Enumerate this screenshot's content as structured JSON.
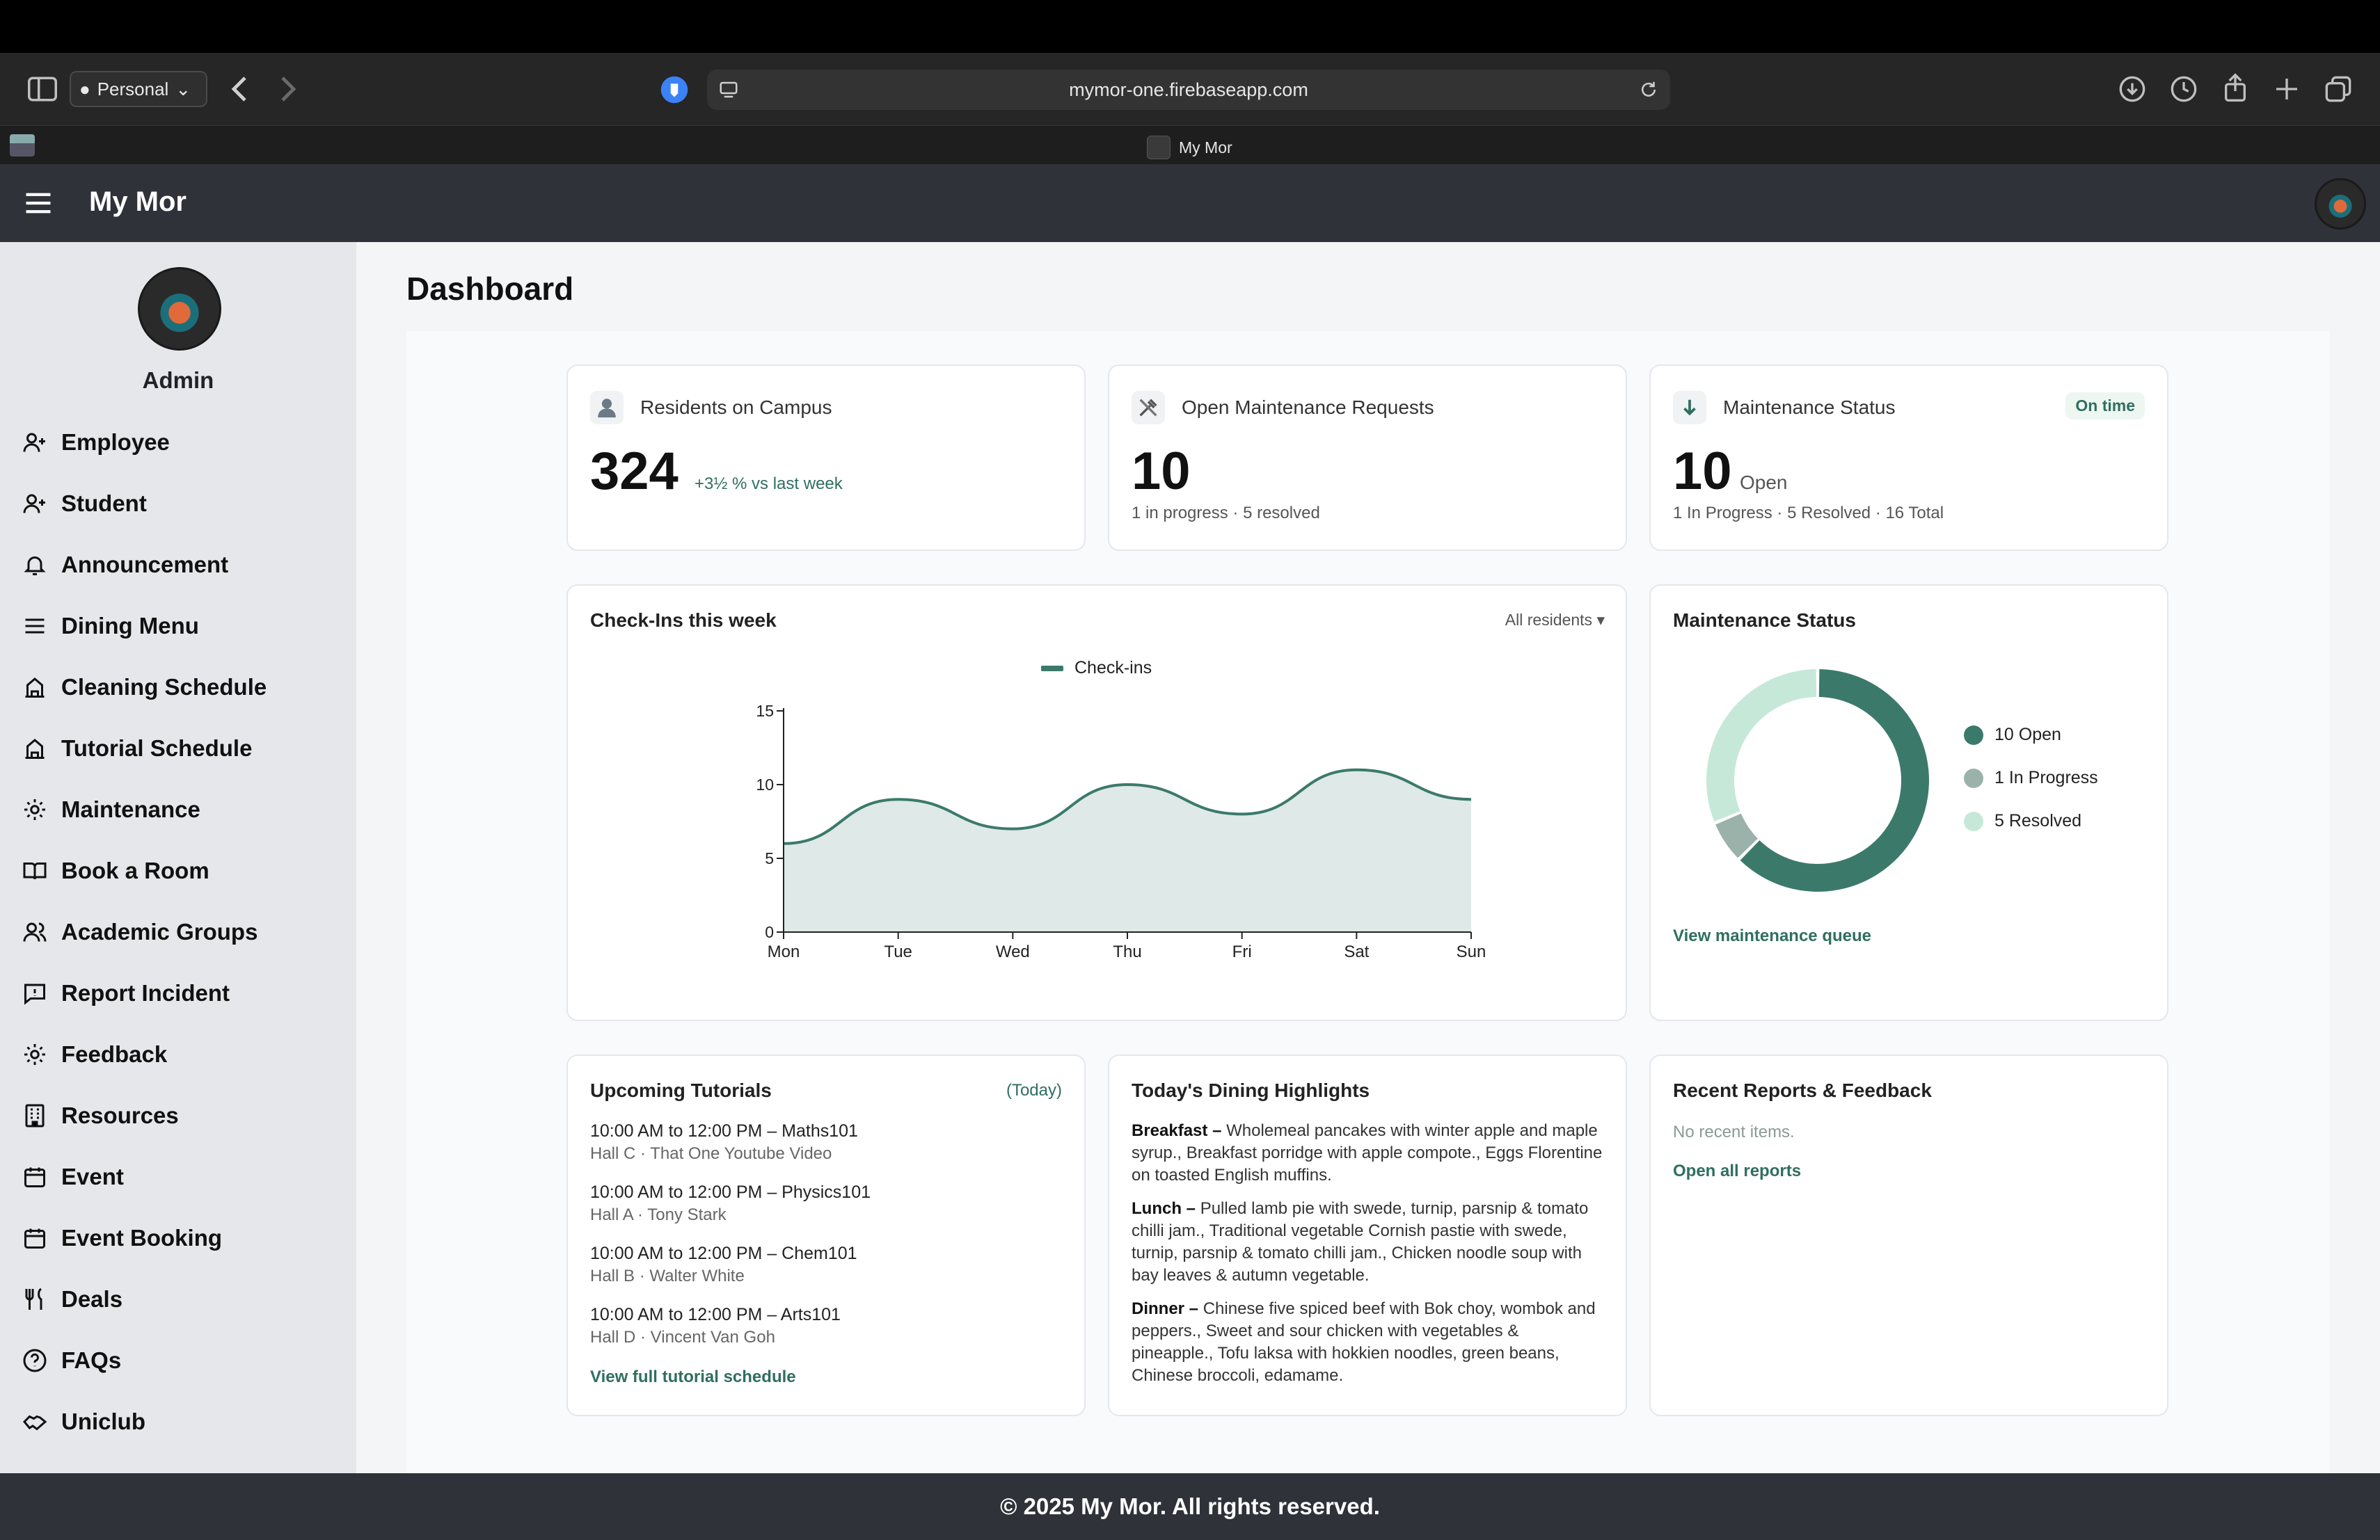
{
  "browser": {
    "profile": "Personal",
    "url": "mymor-one.firebaseapp.com",
    "tab_title": "My Mor"
  },
  "app": {
    "title": "My Mor",
    "footer": "© 2025 My Mor. All rights reserved."
  },
  "sidebar": {
    "user": "Admin",
    "items": [
      {
        "label": "Employee",
        "icon": "user-plus-icon"
      },
      {
        "label": "Student",
        "icon": "user-plus-icon"
      },
      {
        "label": "Announcement",
        "icon": "bell-icon"
      },
      {
        "label": "Dining Menu",
        "icon": "menu-lines-icon"
      },
      {
        "label": "Cleaning Schedule",
        "icon": "building-icon"
      },
      {
        "label": "Tutorial Schedule",
        "icon": "building-icon"
      },
      {
        "label": "Maintenance",
        "icon": "gear-icon"
      },
      {
        "label": "Book a Room",
        "icon": "book-icon"
      },
      {
        "label": "Academic Groups",
        "icon": "users-icon"
      },
      {
        "label": "Report Incident",
        "icon": "message-icon"
      },
      {
        "label": "Feedback",
        "icon": "gear-icon"
      },
      {
        "label": "Resources",
        "icon": "office-icon"
      },
      {
        "label": "Event",
        "icon": "calendar-icon"
      },
      {
        "label": "Event Booking",
        "icon": "calendar-icon"
      },
      {
        "label": "Deals",
        "icon": "utensils-icon"
      },
      {
        "label": "FAQs",
        "icon": "help-circle-icon"
      },
      {
        "label": "Uniclub",
        "icon": "handshake-icon"
      }
    ]
  },
  "dashboard": {
    "title": "Dashboard",
    "residents": {
      "label": "Residents on Campus",
      "value": "324",
      "delta": "+3½ % vs last week"
    },
    "open_requests": {
      "label": "Open Maintenance Requests",
      "value": "10",
      "sub": "1 in progress · 5 resolved"
    },
    "maint_status_card": {
      "label": "Maintenance Status",
      "badge": "On time",
      "value": "10",
      "value_suffix": "Open",
      "sub": "1 In Progress · 5 Resolved · 16 Total"
    },
    "checkins": {
      "title": "Check-Ins this week",
      "filter": "All residents ▾",
      "legend": "Check-ins"
    },
    "maint_donut": {
      "title": "Maintenance Status",
      "link": "View maintenance queue",
      "legend": [
        "10 Open",
        "1 In Progress",
        "5 Resolved"
      ]
    },
    "tutorials": {
      "title": "Upcoming Tutorials",
      "badge": "(Today)",
      "link": "View full tutorial schedule",
      "items": [
        {
          "time": "10:00 AM to 12:00 PM – Maths101",
          "where": "Hall C · That One Youtube Video"
        },
        {
          "time": "10:00 AM to 12:00 PM – Physics101",
          "where": "Hall A · Tony Stark"
        },
        {
          "time": "10:00 AM to 12:00 PM – Chem101",
          "where": "Hall B · Walter White"
        },
        {
          "time": "10:00 AM to 12:00 PM – Arts101",
          "where": "Hall D · Vincent Van Goh"
        }
      ]
    },
    "dining": {
      "title": "Today's Dining Highlights",
      "breakfast_label": "Breakfast –",
      "breakfast": "Wholemeal pancakes with winter apple and maple syrup., Breakfast porridge with apple compote., Eggs Florentine on toasted English muffins.",
      "lunch_label": "Lunch –",
      "lunch": "Pulled lamb pie with swede, turnip, parsnip & tomato chilli jam., Traditional vegetable Cornish pastie with swede, turnip, parsnip & tomato chilli jam., Chicken noodle soup with bay leaves & autumn vegetable.",
      "dinner_label": "Dinner –",
      "dinner": "Chinese five spiced beef with Bok choy, wombok and peppers., Sweet and sour chicken with vegetables & pineapple., Tofu laksa with hokkien noodles, green beans, Chinese broccoli, edamame."
    },
    "reports": {
      "title": "Recent Reports & Feedback",
      "empty": "No recent items.",
      "link": "Open all reports"
    }
  },
  "chart_data": [
    {
      "type": "area",
      "title": "Check-Ins this week",
      "categories": [
        "Mon",
        "Tue",
        "Wed",
        "Thu",
        "Fri",
        "Sat",
        "Sun"
      ],
      "series": [
        {
          "name": "Check-ins",
          "values": [
            6,
            9,
            7,
            10,
            8,
            11,
            9
          ]
        }
      ],
      "ylim": [
        0,
        15
      ],
      "yticks": [
        "0",
        "5",
        "10",
        "15"
      ],
      "color": "#3b7a6b"
    },
    {
      "type": "pie",
      "title": "Maintenance Status",
      "categories": [
        "Open",
        "In Progress",
        "Resolved"
      ],
      "values": [
        10,
        1,
        5
      ],
      "colors": [
        "#3b7a6b",
        "#9bb2ab",
        "#c6e8d9"
      ]
    }
  ]
}
